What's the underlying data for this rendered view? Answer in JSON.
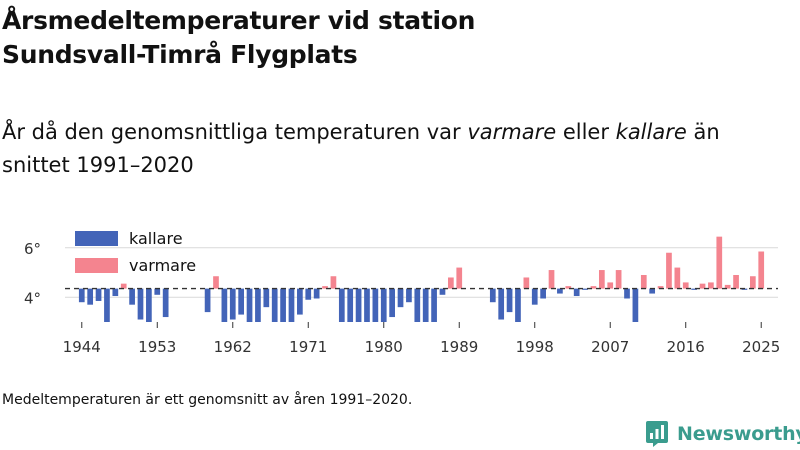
{
  "title_line1": "Årsmedeltemperaturer vid station",
  "title_line2": "Sundsvall-Timrå Flygplats",
  "subtitle": {
    "before": "År då den genomsnittliga temperaturen var ",
    "warm_word": "varmare",
    "middle": " eller ",
    "cold_word": "kallare",
    "after": " än snittet 1991–2020"
  },
  "footnote": "Medeltemperaturen är ett genomsnitt av åren 1991–2020.",
  "brand": "Newsworthy",
  "colors": {
    "cold": "#4364b8",
    "warm": "#f4848f",
    "grid": "#d9d9d9",
    "baseline": "#333333",
    "axis_text": "#333333",
    "brand": "#3a9c8e"
  },
  "chart_data": {
    "type": "bar",
    "title": "Årsmedeltemperaturer vid station Sundsvall-Timrå Flygplats",
    "xlabel": "",
    "ylabel": "",
    "baseline": 4.35,
    "ylim": [
      3.0,
      6.8
    ],
    "yticks": [
      4,
      6
    ],
    "ytick_labels": [
      "4°",
      "6°"
    ],
    "xlim": [
      1942,
      2027
    ],
    "xticks": [
      1944,
      1953,
      1962,
      1971,
      1980,
      1989,
      1998,
      2007,
      2016,
      2025
    ],
    "xtick_labels": [
      "1944",
      "1953",
      "1962",
      "1971",
      "1980",
      "1989",
      "1998",
      "2007",
      "2016",
      "2025"
    ],
    "legend": [
      {
        "key": "cold",
        "label": "kallare"
      },
      {
        "key": "warm",
        "label": "varmare"
      }
    ],
    "legend_position": "top-left",
    "years": [
      1942,
      1943,
      1944,
      1945,
      1946,
      1947,
      1948,
      1949,
      1950,
      1951,
      1952,
      1953,
      1954,
      1955,
      1956,
      1957,
      1958,
      1959,
      1960,
      1961,
      1962,
      1963,
      1964,
      1965,
      1966,
      1967,
      1968,
      1969,
      1970,
      1971,
      1972,
      1973,
      1974,
      1975,
      1976,
      1977,
      1978,
      1979,
      1980,
      1981,
      1982,
      1983,
      1984,
      1985,
      1986,
      1987,
      1988,
      1989,
      1990,
      1991,
      1992,
      1993,
      1994,
      1995,
      1996,
      1997,
      1998,
      1999,
      2000,
      2001,
      2002,
      2003,
      2004,
      2005,
      2006,
      2007,
      2008,
      2009,
      2010,
      2011,
      2012,
      2013,
      2014,
      2015,
      2016,
      2017,
      2018,
      2019,
      2020,
      2021,
      2022,
      2023,
      2024,
      2025
    ],
    "values": [
      null,
      null,
      3.8,
      3.7,
      3.85,
      3.0,
      4.05,
      4.55,
      3.7,
      3.1,
      3.0,
      4.1,
      3.2,
      null,
      null,
      null,
      null,
      3.4,
      4.85,
      3.0,
      3.1,
      3.3,
      3.0,
      3.0,
      3.6,
      3.0,
      3.0,
      3.0,
      3.3,
      3.9,
      3.95,
      4.45,
      4.85,
      3.0,
      3.0,
      3.0,
      3.0,
      3.0,
      3.0,
      3.2,
      3.6,
      3.8,
      3.0,
      3.0,
      3.0,
      4.1,
      4.8,
      5.2,
      null,
      null,
      null,
      3.8,
      3.1,
      3.4,
      3.0,
      4.8,
      3.7,
      3.95,
      5.1,
      4.15,
      4.45,
      4.05,
      4.3,
      4.45,
      5.1,
      4.6,
      5.1,
      3.95,
      3.0,
      4.9,
      4.15,
      4.45,
      5.8,
      5.2,
      4.6,
      4.3,
      4.55,
      4.6,
      6.45,
      4.5,
      4.9,
      4.3,
      4.85,
      5.85
    ]
  }
}
